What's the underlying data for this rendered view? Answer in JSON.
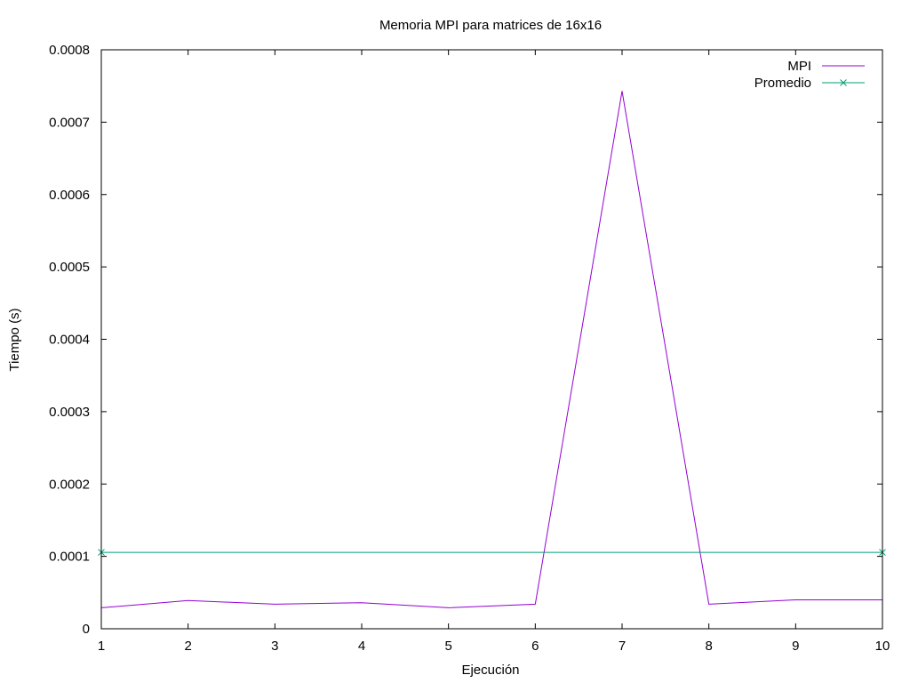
{
  "chart_data": {
    "type": "line",
    "title": "Memoria MPI para matrices de 16x16",
    "xlabel": "Ejecución",
    "ylabel": "Tiempo (s)",
    "xlim": [
      1,
      10
    ],
    "ylim": [
      0,
      0.0008
    ],
    "x_ticks": [
      1,
      2,
      3,
      4,
      5,
      6,
      7,
      8,
      9,
      10
    ],
    "x_tick_labels": [
      "1",
      "2",
      "3",
      "4",
      "5",
      "6",
      "7",
      "8",
      "9",
      "10"
    ],
    "y_ticks": [
      0,
      0.0001,
      0.0002,
      0.0003,
      0.0004,
      0.0005,
      0.0006,
      0.0007,
      0.0008
    ],
    "y_tick_labels": [
      "0",
      "0.0001",
      "0.0002",
      "0.0003",
      "0.0004",
      "0.0005",
      "0.0006",
      "0.0007",
      "0.0008"
    ],
    "grid": false,
    "legend_position": "top-right",
    "series": [
      {
        "name": "MPI",
        "color": "#9400d3",
        "marker": "none",
        "x": [
          1,
          2,
          3,
          4,
          5,
          6,
          7,
          8,
          9,
          10
        ],
        "values": [
          2.9e-05,
          3.9e-05,
          3.4e-05,
          3.6e-05,
          2.9e-05,
          3.4e-05,
          0.000743,
          3.4e-05,
          4e-05,
          4e-05
        ]
      },
      {
        "name": "Promedio",
        "color": "#009e73",
        "marker": "x",
        "x": [
          1,
          10
        ],
        "values": [
          0.0001056,
          0.0001056
        ]
      }
    ]
  }
}
